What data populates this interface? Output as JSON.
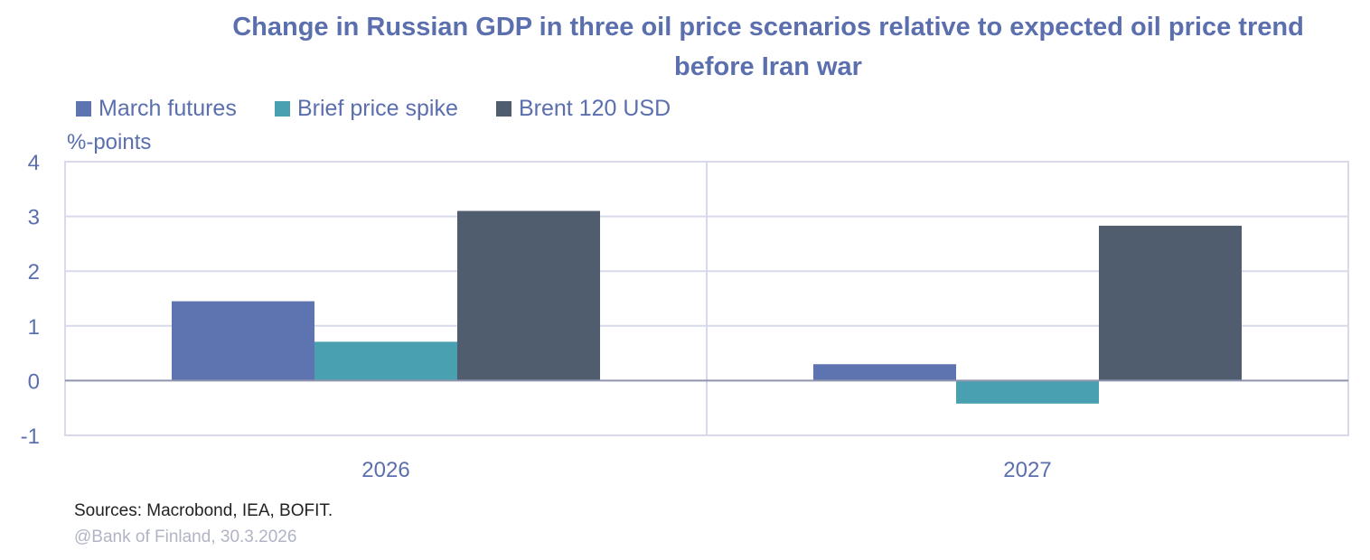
{
  "chart_data": {
    "type": "bar",
    "title": "Change in Russian GDP in three oil price scenarios relative to expected oil price trend before Iran war",
    "ylabel": "%-points",
    "xlabel": "",
    "categories": [
      "2026",
      "2027"
    ],
    "series": [
      {
        "name": "March futures",
        "color": "#5e74b0",
        "values": [
          1.45,
          0.3
        ]
      },
      {
        "name": "Brief price spike",
        "color": "#48a0b0",
        "values": [
          0.71,
          -0.42
        ]
      },
      {
        "name": "Brent 120 USD",
        "color": "#505d6e",
        "values": [
          3.1,
          2.83
        ]
      }
    ],
    "ylim": [
      -1,
      4
    ],
    "yticks": [
      "-1",
      "0",
      "1",
      "2",
      "3",
      "4"
    ],
    "grid": true,
    "legend": "top-left"
  },
  "sources": "Sources: Macrobond, IEA, BOFIT.",
  "credit": "@Bank of Finland, 30.3.2026"
}
